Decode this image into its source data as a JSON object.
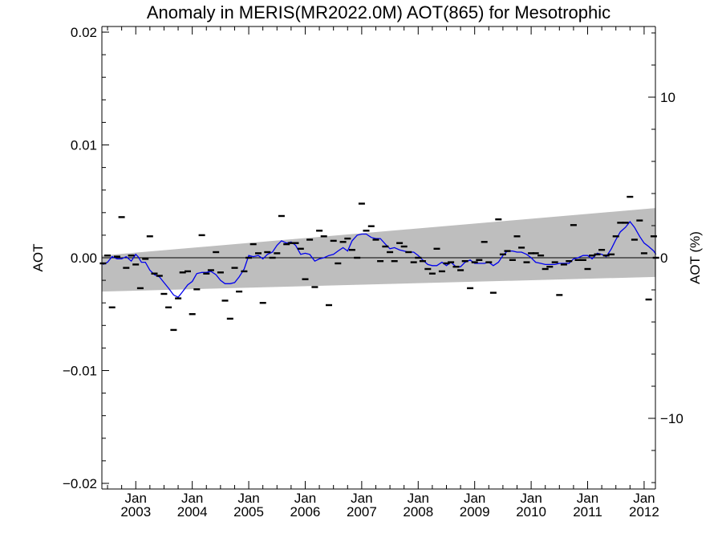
{
  "chart_data": {
    "type": "line",
    "title": "Anomaly in MERIS(MR2022.0M) AOT(865) for Mesotrophic",
    "ylabel_left": "AOT",
    "ylabel_right": "AOT (%)",
    "xlim": [
      2002.4,
      2012.2
    ],
    "ylim": [
      -0.0205,
      0.0205
    ],
    "ylim_right_percent": [
      -14.4,
      14.4
    ],
    "grid": false,
    "x_ticks": [
      {
        "x": 2003.0,
        "top": "Jan",
        "bottom": "2003"
      },
      {
        "x": 2004.0,
        "top": "Jan",
        "bottom": "2004"
      },
      {
        "x": 2005.0,
        "top": "Jan",
        "bottom": "2005"
      },
      {
        "x": 2006.0,
        "top": "Jan",
        "bottom": "2006"
      },
      {
        "x": 2007.0,
        "top": "Jan",
        "bottom": "2007"
      },
      {
        "x": 2008.0,
        "top": "Jan",
        "bottom": "2008"
      },
      {
        "x": 2009.0,
        "top": "Jan",
        "bottom": "2009"
      },
      {
        "x": 2010.0,
        "top": "Jan",
        "bottom": "2010"
      },
      {
        "x": 2011.0,
        "top": "Jan",
        "bottom": "2011"
      },
      {
        "x": 2012.0,
        "top": "Jan",
        "bottom": "2012"
      }
    ],
    "y_ticks_left": [
      {
        "v": 0.02,
        "label": "0.02"
      },
      {
        "v": 0.01,
        "label": "0.01"
      },
      {
        "v": 0.0,
        "label": "0.00"
      },
      {
        "v": -0.01,
        "label": "−0.01"
      },
      {
        "v": -0.02,
        "label": "−0.02"
      }
    ],
    "y_ticks_right": [
      {
        "v": 10,
        "label": "10"
      },
      {
        "v": 0,
        "label": "0"
      },
      {
        "v": -10,
        "label": "−10"
      }
    ],
    "confidence_band": {
      "x": [
        2002.4,
        2012.2
      ],
      "upper": [
        0.0002,
        0.0044
      ],
      "lower": [
        -0.003,
        -0.0017
      ],
      "color": "#bebebe"
    },
    "zero_line": 0,
    "monthly_anomalies": {
      "color": "#000000",
      "points": [
        [
          2002.42,
          -0.0005
        ],
        [
          2002.5,
          0.0002
        ],
        [
          2002.58,
          -0.0044
        ],
        [
          2002.67,
          0.0001
        ],
        [
          2002.75,
          0.0036
        ],
        [
          2002.83,
          -0.0009
        ],
        [
          2002.92,
          0.0002
        ],
        [
          2003.0,
          -0.0006
        ],
        [
          2003.08,
          -0.0027
        ],
        [
          2003.17,
          -0.0001
        ],
        [
          2003.25,
          0.0019
        ],
        [
          2003.33,
          -0.0014
        ],
        [
          2003.42,
          -0.0016
        ],
        [
          2003.5,
          -0.0032
        ],
        [
          2003.58,
          -0.0044
        ],
        [
          2003.67,
          -0.0064
        ],
        [
          2003.75,
          -0.0036
        ],
        [
          2003.83,
          -0.0013
        ],
        [
          2003.92,
          -0.0012
        ],
        [
          2004.0,
          -0.005
        ],
        [
          2004.08,
          -0.0028
        ],
        [
          2004.17,
          0.002
        ],
        [
          2004.25,
          -0.0014
        ],
        [
          2004.33,
          -0.0011
        ],
        [
          2004.42,
          0.0005
        ],
        [
          2004.5,
          -0.0013
        ],
        [
          2004.58,
          -0.0038
        ],
        [
          2004.67,
          -0.0054
        ],
        [
          2004.75,
          -0.0009
        ],
        [
          2004.83,
          -0.003
        ],
        [
          2004.92,
          -0.0012
        ],
        [
          2005.0,
          0.0
        ],
        [
          2005.08,
          0.0012
        ],
        [
          2005.17,
          0.0004
        ],
        [
          2005.25,
          -0.004
        ],
        [
          2005.33,
          0.0005
        ],
        [
          2005.42,
          0.0
        ],
        [
          2005.5,
          0.0004
        ],
        [
          2005.58,
          0.0037
        ],
        [
          2005.67,
          0.0012
        ],
        [
          2005.75,
          0.0013
        ],
        [
          2005.83,
          0.0013
        ],
        [
          2005.92,
          0.0008
        ],
        [
          2006.0,
          -0.0019
        ],
        [
          2006.08,
          0.0016
        ],
        [
          2006.17,
          -0.0026
        ],
        [
          2006.25,
          0.0024
        ],
        [
          2006.33,
          0.0019
        ],
        [
          2006.42,
          -0.0042
        ],
        [
          2006.5,
          0.0015
        ],
        [
          2006.58,
          -0.0005
        ],
        [
          2006.67,
          0.0014
        ],
        [
          2006.75,
          0.0017
        ],
        [
          2006.83,
          0.0007
        ],
        [
          2006.92,
          0.0
        ],
        [
          2007.0,
          0.0048
        ],
        [
          2007.08,
          0.0024
        ],
        [
          2007.17,
          0.0028
        ],
        [
          2007.25,
          0.0016
        ],
        [
          2007.33,
          -0.0003
        ],
        [
          2007.42,
          0.001
        ],
        [
          2007.5,
          0.0005
        ],
        [
          2007.58,
          -0.0003
        ],
        [
          2007.67,
          0.0013
        ],
        [
          2007.75,
          0.001
        ],
        [
          2007.83,
          0.0005
        ],
        [
          2007.92,
          -0.0004
        ],
        [
          2008.0,
          0.0
        ],
        [
          2008.08,
          -0.0003
        ],
        [
          2008.17,
          -0.001
        ],
        [
          2008.25,
          -0.0014
        ],
        [
          2008.33,
          0.0008
        ],
        [
          2008.42,
          -0.0012
        ],
        [
          2008.5,
          -0.0005
        ],
        [
          2008.58,
          -0.0004
        ],
        [
          2008.67,
          -0.0008
        ],
        [
          2008.75,
          -0.0011
        ],
        [
          2008.83,
          -0.0003
        ],
        [
          2008.92,
          -0.0027
        ],
        [
          2009.0,
          -0.0004
        ],
        [
          2009.08,
          -0.0002
        ],
        [
          2009.17,
          0.0014
        ],
        [
          2009.25,
          -0.0004
        ],
        [
          2009.33,
          -0.0031
        ],
        [
          2009.42,
          0.0034
        ],
        [
          2009.5,
          0.0003
        ],
        [
          2009.58,
          0.0006
        ],
        [
          2009.67,
          -0.0002
        ],
        [
          2009.75,
          0.0019
        ],
        [
          2009.83,
          0.0009
        ],
        [
          2009.92,
          -0.0004
        ],
        [
          2010.0,
          0.0004
        ],
        [
          2010.08,
          0.0004
        ],
        [
          2010.17,
          0.0002
        ],
        [
          2010.25,
          -0.001
        ],
        [
          2010.33,
          -0.0008
        ],
        [
          2010.42,
          -0.0004
        ],
        [
          2010.5,
          -0.0033
        ],
        [
          2010.58,
          -0.0006
        ],
        [
          2010.67,
          -0.0003
        ],
        [
          2010.75,
          0.0029
        ],
        [
          2010.83,
          -0.0002
        ],
        [
          2010.92,
          -0.0002
        ],
        [
          2011.0,
          -0.001
        ],
        [
          2011.08,
          0.0002
        ],
        [
          2011.17,
          0.0003
        ],
        [
          2011.25,
          0.0007
        ],
        [
          2011.33,
          0.0002
        ],
        [
          2011.42,
          0.0003
        ],
        [
          2011.5,
          0.0019
        ],
        [
          2011.58,
          0.0031
        ],
        [
          2011.67,
          0.0031
        ],
        [
          2011.75,
          0.0054
        ],
        [
          2011.83,
          0.0016
        ],
        [
          2011.92,
          0.0033
        ],
        [
          2012.0,
          0.0004
        ],
        [
          2012.08,
          -0.0037
        ],
        [
          2012.17,
          0.0019
        ],
        [
          2012.21,
          0.0
        ]
      ]
    },
    "running_mean": {
      "color": "#0000ee",
      "points": [
        [
          2002.42,
          -0.0006
        ],
        [
          2002.5,
          -0.0004
        ],
        [
          2002.58,
          0.0001
        ],
        [
          2002.67,
          -0.0001
        ],
        [
          2002.75,
          -0.0001
        ],
        [
          2002.83,
          0.0001
        ],
        [
          2002.92,
          -0.0003
        ],
        [
          2003.0,
          0.0003
        ],
        [
          2003.04,
          0.0001
        ],
        [
          2003.1,
          -0.0004
        ],
        [
          2003.17,
          -0.0004
        ],
        [
          2003.25,
          -0.0011
        ],
        [
          2003.33,
          -0.0015
        ],
        [
          2003.42,
          -0.0017
        ],
        [
          2003.5,
          -0.0022
        ],
        [
          2003.58,
          -0.0027
        ],
        [
          2003.67,
          -0.0033
        ],
        [
          2003.75,
          -0.0035
        ],
        [
          2003.83,
          -0.003
        ],
        [
          2003.92,
          -0.0024
        ],
        [
          2004.0,
          -0.0021
        ],
        [
          2004.08,
          -0.0014
        ],
        [
          2004.17,
          -0.0013
        ],
        [
          2004.25,
          -0.0013
        ],
        [
          2004.33,
          -0.0012
        ],
        [
          2004.42,
          -0.0015
        ],
        [
          2004.5,
          -0.002
        ],
        [
          2004.58,
          -0.0023
        ],
        [
          2004.67,
          -0.0023
        ],
        [
          2004.75,
          -0.0022
        ],
        [
          2004.83,
          -0.0017
        ],
        [
          2004.92,
          -0.001
        ],
        [
          2005.0,
          0.0002
        ],
        [
          2005.08,
          0.0001
        ],
        [
          2005.17,
          0.0002
        ],
        [
          2005.25,
          -0.0001
        ],
        [
          2005.33,
          0.0003
        ],
        [
          2005.42,
          0.0005
        ],
        [
          2005.5,
          0.0011
        ],
        [
          2005.58,
          0.0015
        ],
        [
          2005.67,
          0.0013
        ],
        [
          2005.75,
          0.0014
        ],
        [
          2005.83,
          0.0011
        ],
        [
          2005.92,
          0.0003
        ],
        [
          2006.0,
          0.0004
        ],
        [
          2006.08,
          0.0003
        ],
        [
          2006.17,
          -0.0003
        ],
        [
          2006.25,
          -0.0001
        ],
        [
          2006.33,
          0.0
        ],
        [
          2006.42,
          0.0002
        ],
        [
          2006.5,
          0.0003
        ],
        [
          2006.58,
          0.0006
        ],
        [
          2006.67,
          0.0009
        ],
        [
          2006.75,
          0.0006
        ],
        [
          2006.83,
          0.0015
        ],
        [
          2006.92,
          0.002
        ],
        [
          2007.0,
          0.0021
        ],
        [
          2007.08,
          0.0021
        ],
        [
          2007.17,
          0.0018
        ],
        [
          2007.25,
          0.0017
        ],
        [
          2007.33,
          0.0017
        ],
        [
          2007.42,
          0.0012
        ],
        [
          2007.5,
          0.0008
        ],
        [
          2007.58,
          0.0009
        ],
        [
          2007.67,
          0.0007
        ],
        [
          2007.75,
          0.0006
        ],
        [
          2007.83,
          0.0005
        ],
        [
          2007.92,
          0.0005
        ],
        [
          2008.0,
          0.0002
        ],
        [
          2008.08,
          -0.0002
        ],
        [
          2008.17,
          -0.0006
        ],
        [
          2008.25,
          -0.0007
        ],
        [
          2008.33,
          -0.0007
        ],
        [
          2008.42,
          -0.0004
        ],
        [
          2008.5,
          -0.0007
        ],
        [
          2008.58,
          -0.0004
        ],
        [
          2008.67,
          -0.0008
        ],
        [
          2008.75,
          -0.0008
        ],
        [
          2008.83,
          -0.0004
        ],
        [
          2008.92,
          -0.0002
        ],
        [
          2009.0,
          -0.0005
        ],
        [
          2009.08,
          -0.0005
        ],
        [
          2009.17,
          -0.0005
        ],
        [
          2009.25,
          -0.0004
        ],
        [
          2009.33,
          -0.0007
        ],
        [
          2009.42,
          -0.0004
        ],
        [
          2009.5,
          0.0002
        ],
        [
          2009.58,
          0.0006
        ],
        [
          2009.67,
          0.0006
        ],
        [
          2009.75,
          0.0005
        ],
        [
          2009.83,
          0.0005
        ],
        [
          2009.92,
          0.0003
        ],
        [
          2010.0,
          0.0
        ],
        [
          2010.08,
          -0.0004
        ],
        [
          2010.17,
          -0.0005
        ],
        [
          2010.25,
          -0.0006
        ],
        [
          2010.33,
          -0.0006
        ],
        [
          2010.42,
          -0.0006
        ],
        [
          2010.5,
          -0.0005
        ],
        [
          2010.58,
          -0.0005
        ],
        [
          2010.67,
          -0.0005
        ],
        [
          2010.75,
          -0.0001
        ],
        [
          2010.83,
          0.0
        ],
        [
          2010.92,
          0.0002
        ],
        [
          2011.0,
          0.0002
        ],
        [
          2011.08,
          -0.0001
        ],
        [
          2011.17,
          0.0004
        ],
        [
          2011.25,
          0.0003
        ],
        [
          2011.33,
          0.0001
        ],
        [
          2011.42,
          0.0008
        ],
        [
          2011.5,
          0.0016
        ],
        [
          2011.58,
          0.0023
        ],
        [
          2011.67,
          0.0027
        ],
        [
          2011.75,
          0.0032
        ],
        [
          2011.83,
          0.0027
        ],
        [
          2011.92,
          0.0019
        ],
        [
          2012.0,
          0.0013
        ],
        [
          2012.08,
          0.001
        ],
        [
          2012.17,
          0.0006
        ],
        [
          2012.21,
          0.0003
        ]
      ]
    }
  }
}
